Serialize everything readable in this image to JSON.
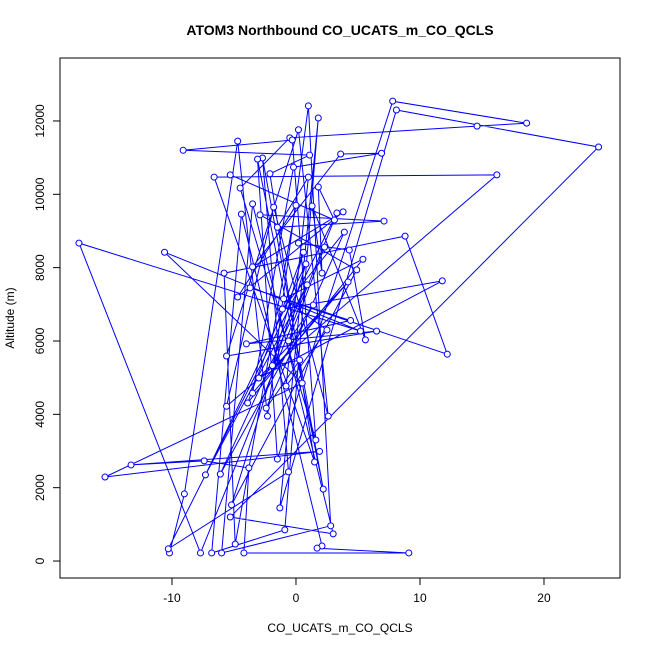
{
  "chart_data": {
    "type": "line",
    "title": "ATOM3 Northbound CO_UCATS_m_CO_QCLS",
    "x_label": "CO_UCATS_m_CO_QCLS",
    "y_label": "Altitude (m)",
    "color": "#0000ff",
    "markers": true,
    "xlim": [
      -19.03,
      26.13
    ],
    "ylim": [
      -463,
      13717
    ],
    "xticks": [
      -10,
      0,
      10,
      20
    ],
    "yticks": [
      0,
      2000,
      4000,
      6000,
      8000,
      10000,
      12000
    ],
    "x": [
      -10.2,
      -9.0,
      -4.7,
      -2.3,
      1.0,
      2.8,
      -6.0,
      -3.5,
      3.0,
      -5.3,
      24.4,
      8.1,
      -1.3,
      1.8,
      -0.9,
      -6.8,
      -4.4,
      2.1,
      1.7,
      9.1,
      -4.2,
      -3.8,
      -7.4,
      -13.3,
      1.9,
      -15.4,
      0.5,
      -10.6,
      5.2,
      -17.5,
      -7.7,
      3.3,
      -10.3,
      -0.6,
      -2.7,
      2.2,
      -3.1,
      -1.5,
      7.8,
      18.6,
      14.6,
      -0.5,
      -4.5,
      1.6,
      -0.3,
      -9.1,
      1.1,
      -2.1,
      1.5,
      -6.6,
      16.2,
      -5.6,
      -1.8,
      2.6,
      0.2,
      -5.6,
      6.5,
      -4.0,
      4.4,
      -3.7,
      12.2,
      8.8,
      -5.8,
      -4.9,
      0.0,
      -4.7,
      3.8,
      -3.5,
      3.6,
      6.9,
      -0.2,
      -3.5,
      4.2,
      -3.0,
      11.8,
      -1.1,
      3.9,
      -2.4,
      0.3,
      -1.9,
      0.6,
      -3.9,
      5.4,
      -1.0,
      2.5,
      -0.8,
      1.0,
      -1.5,
      7.1,
      -2.9,
      4.9,
      -5.2,
      0.8,
      -7.3,
      0.9,
      -6.1,
      1.4,
      -0.6,
      2.3,
      0.2,
      4.3,
      5.6,
      1.3,
      2.1,
      1.8,
      3.1,
      -5.3
    ],
    "values": [
      220,
      1830,
      11450,
      3950,
      12410,
      960,
      220,
      9740,
      740,
      1200,
      11290,
      12300,
      1450,
      12080,
      850,
      220,
      9460,
      410,
      350,
      220,
      220,
      2540,
      2730,
      2620,
      2990,
      2290,
      4850,
      8420,
      6270,
      8670,
      220,
      9490,
      330,
      2430,
      10990,
      1960,
      10960,
      2780,
      12540,
      11940,
      11860,
      11540,
      10170,
      3300,
      11480,
      11200,
      11070,
      10560,
      2700,
      10470,
      10530,
      4220,
      9650,
      3950,
      11760,
      5590,
      6270,
      5920,
      6560,
      7450,
      5640,
      8860,
      7850,
      460,
      9700,
      7200,
      9520,
      8020,
      11100,
      11120,
      10740,
      4580,
      7610,
      4990,
      7640,
      6870,
      8970,
      4170,
      5480,
      5330,
      8420,
      4310,
      8230,
      7150,
      6300,
      4770,
      10470,
      9100,
      9270,
      9440,
      7940,
      1530,
      8100,
      2350,
      7530,
      2370,
      6980,
      6000,
      8560,
      8670,
      8480,
      6030,
      9680,
      7850,
      10200,
      9300,
      10530
    ]
  }
}
